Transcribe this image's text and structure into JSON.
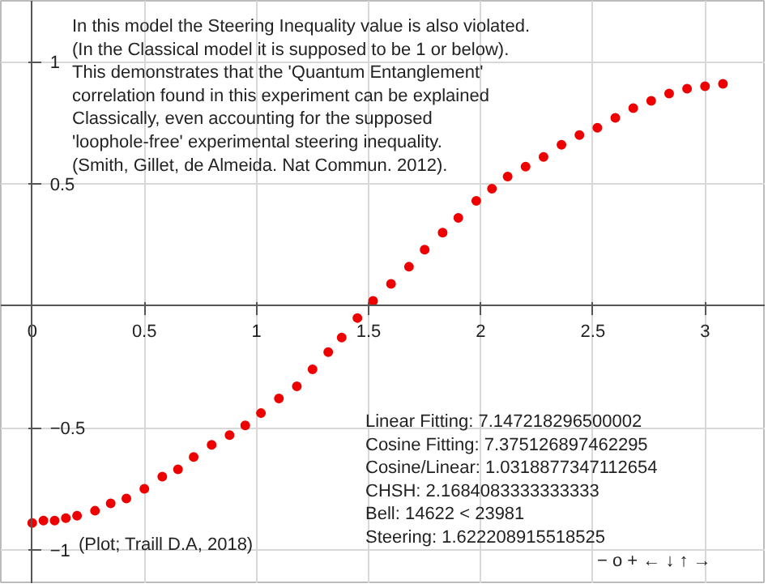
{
  "chart_data": {
    "type": "scatter",
    "annotations": [
      "In this model the Steering Inequality value is also violated.\n(In the Classical model it is supposed to be 1 or below).\nThis demonstrates that the 'Quantum Entanglement'\ncorrelation found in this experiment can be explained\nClassically, even accounting for the supposed\n'loophole-free' experimental steering inequality.\n(Smith, Gillet, de Almeida. Nat Commun. 2012).",
      "(Plot; Traill D.A, 2018)",
      "Linear Fitting: 7.147218296500002\nCosine Fitting: 7.375126897462295\nCosine/Linear: 1.0318877347112654\nCHSH: 2.1684083333333333\nBell: 14622 < 23981\nSteering: 1.622208915518525",
      "− o + ← ↓ ↑ →"
    ],
    "x": [
      0.0,
      0.05,
      0.1,
      0.15,
      0.2,
      0.28,
      0.35,
      0.42,
      0.5,
      0.58,
      0.65,
      0.72,
      0.8,
      0.88,
      0.95,
      1.02,
      1.1,
      1.18,
      1.25,
      1.32,
      1.38,
      1.45,
      1.52,
      1.6,
      1.68,
      1.75,
      1.83,
      1.9,
      1.98,
      2.05,
      2.12,
      2.2,
      2.28,
      2.36,
      2.44,
      2.52,
      2.6,
      2.68,
      2.76,
      2.84,
      2.92,
      3.0,
      3.08
    ],
    "series": [
      {
        "color": "#ee0000",
        "values": [
          -0.89,
          -0.88,
          -0.88,
          -0.87,
          -0.86,
          -0.84,
          -0.81,
          -0.79,
          -0.75,
          -0.7,
          -0.67,
          -0.62,
          -0.57,
          -0.53,
          -0.49,
          -0.44,
          -0.38,
          -0.33,
          -0.26,
          -0.19,
          -0.13,
          -0.05,
          0.02,
          0.09,
          0.16,
          0.23,
          0.3,
          0.36,
          0.43,
          0.48,
          0.53,
          0.57,
          0.61,
          0.66,
          0.7,
          0.73,
          0.77,
          0.81,
          0.84,
          0.87,
          0.89,
          0.9,
          0.91
        ]
      }
    ],
    "xlim": [
      -0.14,
      3.27
    ],
    "ylim": [
      -1.14,
      1.25
    ],
    "xticks": [
      0,
      0.5,
      1,
      1.5,
      2,
      2.5,
      3
    ],
    "yticks": [
      {
        "value": -1,
        "label": "−1"
      },
      {
        "value": -0.5,
        "label": "−0.5"
      },
      {
        "value": 0.5,
        "label": "0.5"
      },
      1
    ],
    "grid": true,
    "marker": "circle"
  }
}
